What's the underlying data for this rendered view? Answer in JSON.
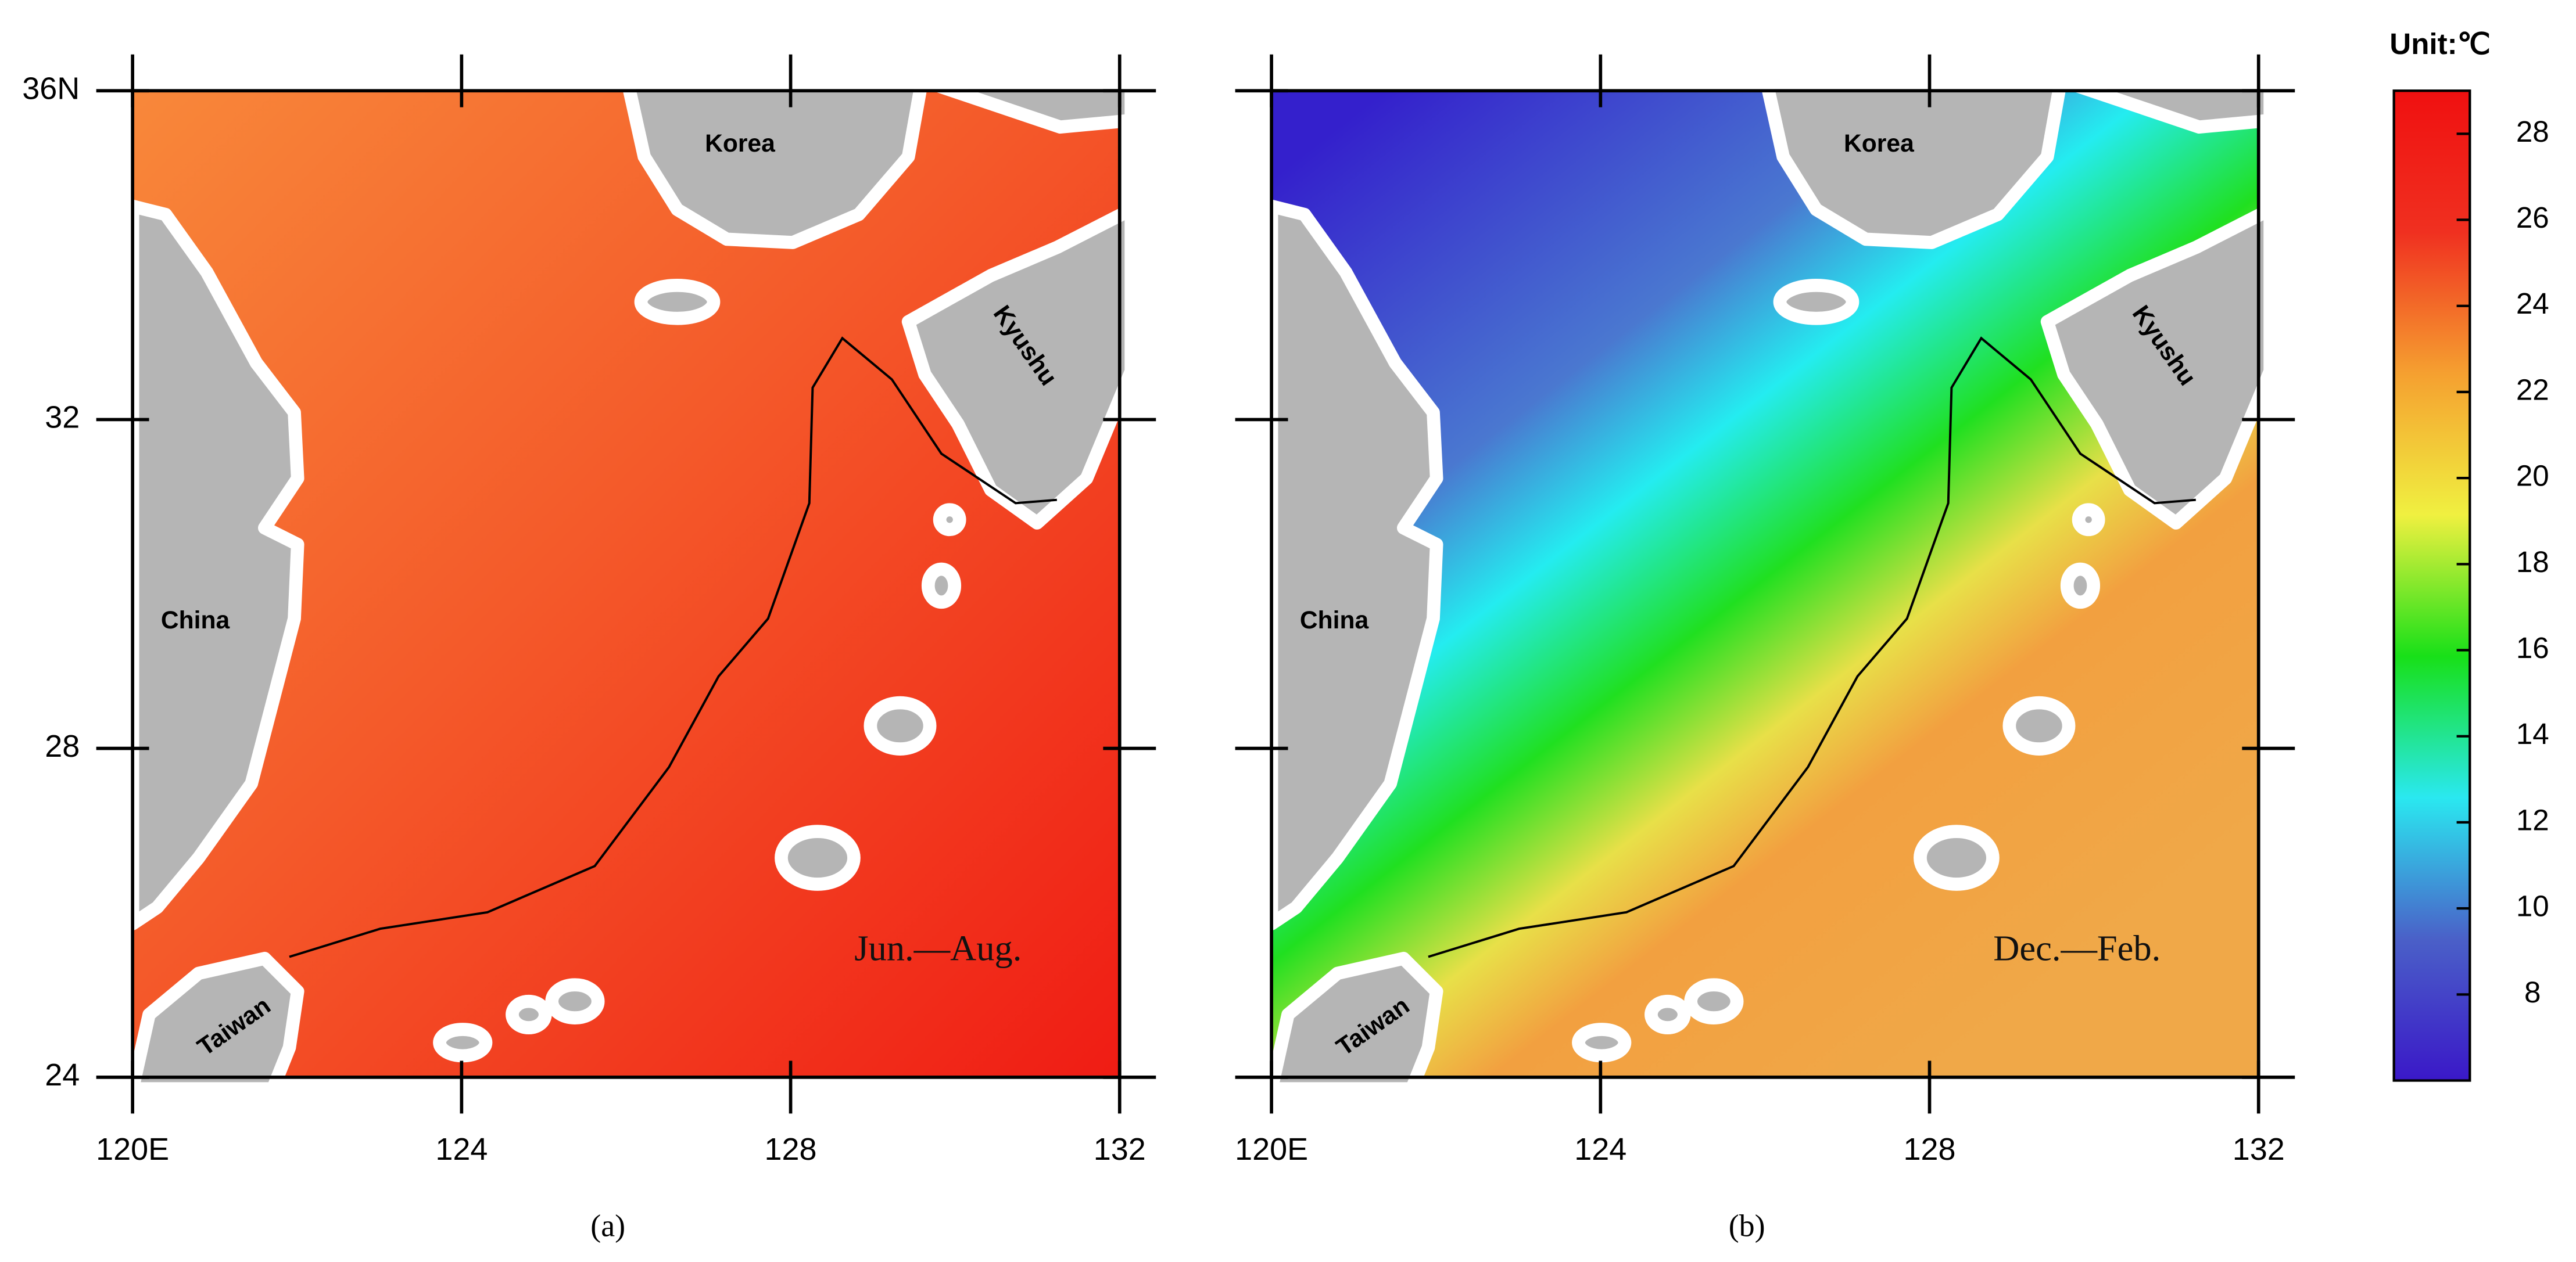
{
  "panels": [
    {
      "label": "(a)",
      "season": "Jun.—Aug.",
      "places": [
        "Korea",
        "Kyushu",
        "China",
        "Taiwan"
      ]
    },
    {
      "label": "(b)",
      "season": "Dec.—Feb.",
      "places": [
        "Korea",
        "Kyushu",
        "China",
        "Taiwan"
      ]
    }
  ],
  "longitude_ticks": [
    {
      "value": 120,
      "label": "120E"
    },
    124,
    128,
    132
  ],
  "latitude_ticks": [
    {
      "value": 36,
      "label": "36N"
    },
    32,
    28,
    24
  ],
  "colorbar": {
    "title": "Unit:℃",
    "range": [
      6,
      29
    ],
    "ticks": [
      8,
      10,
      12,
      14,
      16,
      18,
      20,
      22,
      24,
      26,
      28
    ],
    "colors": [
      "#3a18c8",
      "#4a60c8",
      "#2ae8f0",
      "#18e018",
      "#f0f040",
      "#f5a030",
      "#f03020",
      "#f01010"
    ]
  }
}
